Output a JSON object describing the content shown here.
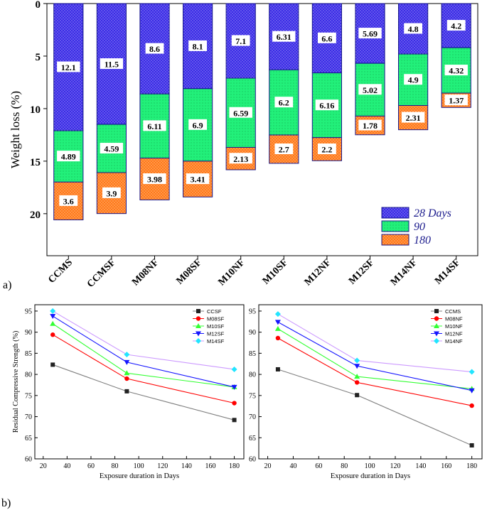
{
  "panel_labels": {
    "a": "a)",
    "b": "b)"
  },
  "colors": {
    "days28": "#3a2be6",
    "days90": "#22f07a",
    "days180": "#ff7a1a",
    "outline": "#1a1a8c",
    "line_black": "#222222",
    "line_red": "#ff0000",
    "line_green": "#33ff33",
    "line_blue": "#1515ff",
    "line_cyan": "#22e5ff",
    "line_gray": "#808080",
    "line_violet": "#cc99ff"
  },
  "chart_data": [
    {
      "type": "bar",
      "stacked": true,
      "orientation": "downward",
      "categories": [
        "CCMS",
        "CCMSF",
        "M08NF",
        "M08SF",
        "M10NF",
        "M10SF",
        "M12NF",
        "M12SF",
        "M14NF",
        "M14SF"
      ],
      "series": [
        {
          "name": "28 Days",
          "values": [
            12.1,
            11.5,
            8.6,
            8.1,
            7.1,
            6.31,
            6.6,
            5.69,
            4.8,
            4.2
          ],
          "labels": [
            "12.1",
            "11.5",
            "8.6",
            "8.1",
            "7.1",
            "6.31",
            "6.6",
            "5.69",
            "4.8",
            "4.2"
          ]
        },
        {
          "name": "90",
          "values": [
            4.89,
            4.59,
            6.11,
            6.9,
            6.59,
            6.2,
            6.16,
            5.02,
            4.9,
            4.32
          ],
          "labels": [
            "4.89",
            "4.59",
            "6.11",
            "6.9",
            "6.59",
            "6.2",
            "6.16",
            "5.02",
            "4.9",
            "4.32"
          ]
        },
        {
          "name": "180",
          "values": [
            3.6,
            3.9,
            3.98,
            3.41,
            2.13,
            2.7,
            2.2,
            1.78,
            2.31,
            1.37
          ],
          "labels": [
            "3.6",
            "3.9",
            "3.98",
            "3.41",
            "2.13",
            "2.7",
            "2.2",
            "1.78",
            "2.31",
            "1.37"
          ]
        }
      ],
      "ylabel": "Weight loss (%)",
      "ylim": [
        0,
        24
      ],
      "yticks": [
        "0",
        "5",
        "10",
        "15",
        "20"
      ],
      "ytick_values": [
        0,
        5,
        10,
        15,
        20
      ],
      "legend": [
        "28 Days",
        "90",
        "180"
      ],
      "legend_position": "bottom-right"
    },
    {
      "type": "line",
      "x": [
        28,
        90,
        180
      ],
      "series": [
        {
          "name": "CCSF",
          "values": [
            82.3,
            76.0,
            69.2
          ]
        },
        {
          "name": "M08SF",
          "values": [
            89.4,
            79.0,
            73.2
          ]
        },
        {
          "name": "M10SF",
          "values": [
            92.0,
            80.3,
            77.0
          ]
        },
        {
          "name": "M12SF",
          "values": [
            93.8,
            82.9,
            77.0
          ]
        },
        {
          "name": "M14SF",
          "values": [
            95.0,
            84.7,
            81.2
          ]
        }
      ],
      "xlabel": "Exposure duration in Days",
      "ylabel": "Residual Compressive Strength (%)",
      "xlim": [
        13,
        188
      ],
      "ylim": [
        60,
        96.5
      ],
      "xticks": [
        "20",
        "40",
        "60",
        "80",
        "100",
        "120",
        "140",
        "160",
        "180"
      ],
      "xtick_values": [
        20,
        40,
        60,
        80,
        100,
        120,
        140,
        160,
        180
      ],
      "yticks": [
        "60",
        "65",
        "70",
        "75",
        "80",
        "85",
        "90",
        "95"
      ],
      "ytick_values": [
        60,
        65,
        70,
        75,
        80,
        85,
        90,
        95
      ],
      "legend_position": "top-right"
    },
    {
      "type": "line",
      "x": [
        28,
        90,
        180
      ],
      "series": [
        {
          "name": "CCMS",
          "values": [
            81.2,
            75.1,
            63.2
          ]
        },
        {
          "name": "M08NF",
          "values": [
            88.6,
            78.1,
            72.6
          ]
        },
        {
          "name": "M10NF",
          "values": [
            90.8,
            79.5,
            76.6
          ]
        },
        {
          "name": "M12NF",
          "values": [
            92.4,
            82.0,
            76.2
          ]
        },
        {
          "name": "M14NF",
          "values": [
            94.3,
            83.3,
            80.6
          ]
        }
      ],
      "xlabel": "Exposure duration in Days",
      "ylabel": "",
      "xlim": [
        13,
        188
      ],
      "ylim": [
        60,
        96.5
      ],
      "xticks": [
        "20",
        "40",
        "60",
        "80",
        "100",
        "120",
        "140",
        "160",
        "180"
      ],
      "xtick_values": [
        20,
        40,
        60,
        80,
        100,
        120,
        140,
        160,
        180
      ],
      "yticks": [
        "60",
        "65",
        "70",
        "75",
        "80",
        "85",
        "90",
        "95"
      ],
      "ytick_values": [
        60,
        65,
        70,
        75,
        80,
        85,
        90,
        95
      ],
      "legend_position": "top-right"
    }
  ]
}
